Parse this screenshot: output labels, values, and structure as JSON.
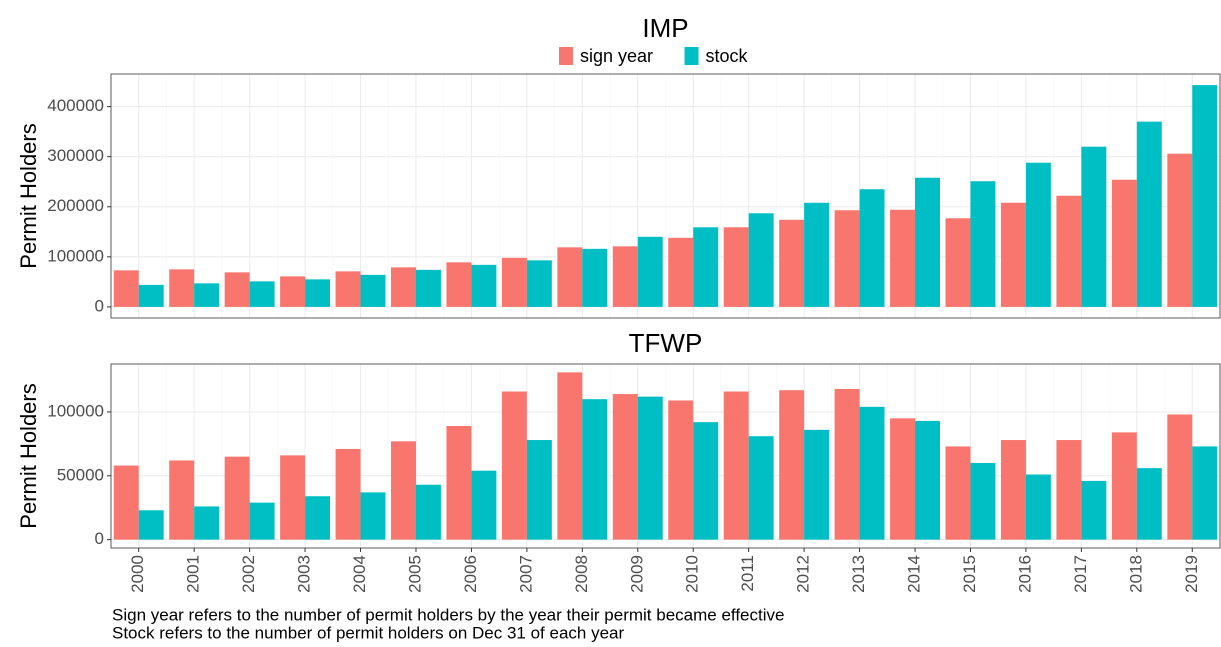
{
  "chart_data": [
    {
      "type": "bar",
      "title": "IMP",
      "y_label": "Permit Holders",
      "categories": [
        "2000",
        "2001",
        "2002",
        "2003",
        "2004",
        "2005",
        "2006",
        "2007",
        "2008",
        "2009",
        "2010",
        "2011",
        "2012",
        "2013",
        "2014",
        "2015",
        "2016",
        "2017",
        "2018",
        "2019"
      ],
      "series": [
        {
          "name": "sign year",
          "color": "#F8766D",
          "values": [
            73000,
            75000,
            69000,
            61000,
            71000,
            79000,
            89000,
            98000,
            119000,
            121000,
            138000,
            159000,
            174000,
            193000,
            194000,
            177000,
            208000,
            222000,
            254000,
            306000
          ]
        },
        {
          "name": "stock",
          "color": "#00BFC4",
          "values": [
            44000,
            47000,
            51000,
            55000,
            64000,
            74000,
            84000,
            93000,
            116000,
            140000,
            159000,
            187000,
            208000,
            235000,
            258000,
            251000,
            288000,
            320000,
            370000,
            443000
          ]
        }
      ],
      "ylim": [
        -22150,
        465150
      ],
      "yticks": [
        0,
        100000,
        200000,
        300000,
        400000
      ],
      "grid": true,
      "legend": "top"
    },
    {
      "type": "bar",
      "title": "TFWP",
      "y_label": "Permit Holders",
      "categories": [
        "2000",
        "2001",
        "2002",
        "2003",
        "2004",
        "2005",
        "2006",
        "2007",
        "2008",
        "2009",
        "2010",
        "2011",
        "2012",
        "2013",
        "2014",
        "2015",
        "2016",
        "2017",
        "2018",
        "2019"
      ],
      "series": [
        {
          "color": "#F8766D",
          "values": [
            58000,
            62000,
            65000,
            66000,
            71000,
            77000,
            89000,
            116000,
            131000,
            114000,
            109000,
            116000,
            117000,
            118000,
            95000,
            73000,
            78000,
            78000,
            84000,
            98000
          ]
        },
        {
          "color": "#00BFC4",
          "values": [
            23000,
            26000,
            29000,
            34000,
            37000,
            43000,
            54000,
            78000,
            110000,
            112000,
            92000,
            81000,
            86000,
            104000,
            93000,
            60000,
            51000,
            46000,
            56000,
            73000
          ]
        }
      ],
      "ylim": [
        -6550,
        137550
      ],
      "yticks": [
        0,
        50000,
        100000
      ],
      "grid": true
    }
  ],
  "notes": [
    "Sign year refers to the number of permit holders by the year their permit became effective",
    "Stock refers to the number of permit holders on Dec 31 of each year"
  ]
}
